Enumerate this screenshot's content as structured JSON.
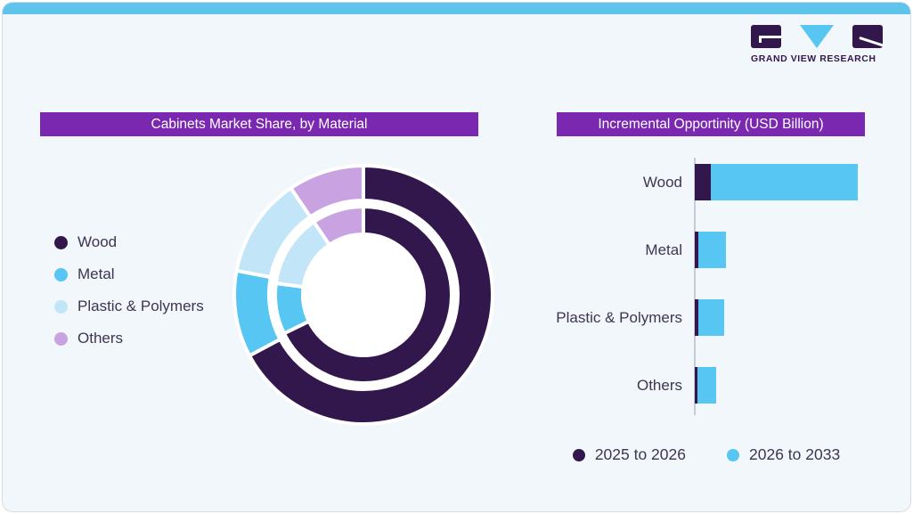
{
  "theme": {
    "card_bg": "#F1F7FA",
    "top_strip": "#5EC4EC",
    "card_border": "#D8DDE2",
    "banner_bg": "#7A28B0",
    "banner_text": "#FFFFFF",
    "label_text": "#3D3552",
    "axis_line": "#C6CCD3",
    "wood_dark": "#32174D",
    "metal_blue": "#57C6F2",
    "plastic_pale_blue": "#C2E6F8",
    "others_lavender": "#C9A3E1",
    "white": "#FFFFFF"
  },
  "brand": {
    "name": "GRAND VIEW RESEARCH",
    "logo_dark": "#32174D",
    "logo_blue": "#57C6F2"
  },
  "left_panel": {
    "title": "Cabinets Market Share, by Material",
    "legend": [
      {
        "label": "Wood",
        "color": "#32174D"
      },
      {
        "label": "Metal",
        "color": "#57C6F2"
      },
      {
        "label": "Plastic & Polymers",
        "color": "#C2E6F8"
      },
      {
        "label": "Others",
        "color": "#C9A3E1"
      }
    ]
  },
  "right_panel": {
    "title": "Incremental Opportinity (USD Billion)",
    "legend": [
      {
        "label": "2025 to 2026",
        "color": "#32174D"
      },
      {
        "label": "2026 to 2033",
        "color": "#57C6F2"
      }
    ]
  },
  "chart_data": [
    {
      "type": "pie",
      "variant": "double-ring-donut",
      "title": "Cabinets Market Share, by Material",
      "categories": [
        "Wood",
        "Metal",
        "Plastic & Polymers",
        "Others"
      ],
      "colors": [
        "#32174D",
        "#57C6F2",
        "#C2E6F8",
        "#C9A3E1"
      ],
      "series": [
        {
          "name": "outer-ring",
          "values": [
            67.2,
            10.8,
            12.5,
            9.5
          ]
        },
        {
          "name": "inner-ring",
          "values": [
            67.8,
            9.3,
            13.4,
            9.5
          ]
        }
      ],
      "units": "percent share (estimated from arc angles; no numeric labels shown)",
      "start_angle_deg": 0,
      "clockwise": true,
      "legend_position": "left",
      "data_labels_shown": false
    },
    {
      "type": "bar",
      "orientation": "horizontal",
      "stacked": true,
      "title": "Incremental Opportinity (USD Billion)",
      "categories": [
        "Wood",
        "Metal",
        "Plastic & Polymers",
        "Others"
      ],
      "series": [
        {
          "name": "2025 to 2026",
          "color": "#32174D",
          "values": [
            9.6,
            2.0,
            2.0,
            1.6
          ]
        },
        {
          "name": "2026 to 2033",
          "color": "#57C6F2",
          "values": [
            90.4,
            17.4,
            16.3,
            11.6
          ]
        }
      ],
      "units": "relative bar length, % of longest bar (no numeric axis labels shown)",
      "axis_labels_shown": false,
      "gridlines": false,
      "legend_position": "bottom"
    }
  ]
}
